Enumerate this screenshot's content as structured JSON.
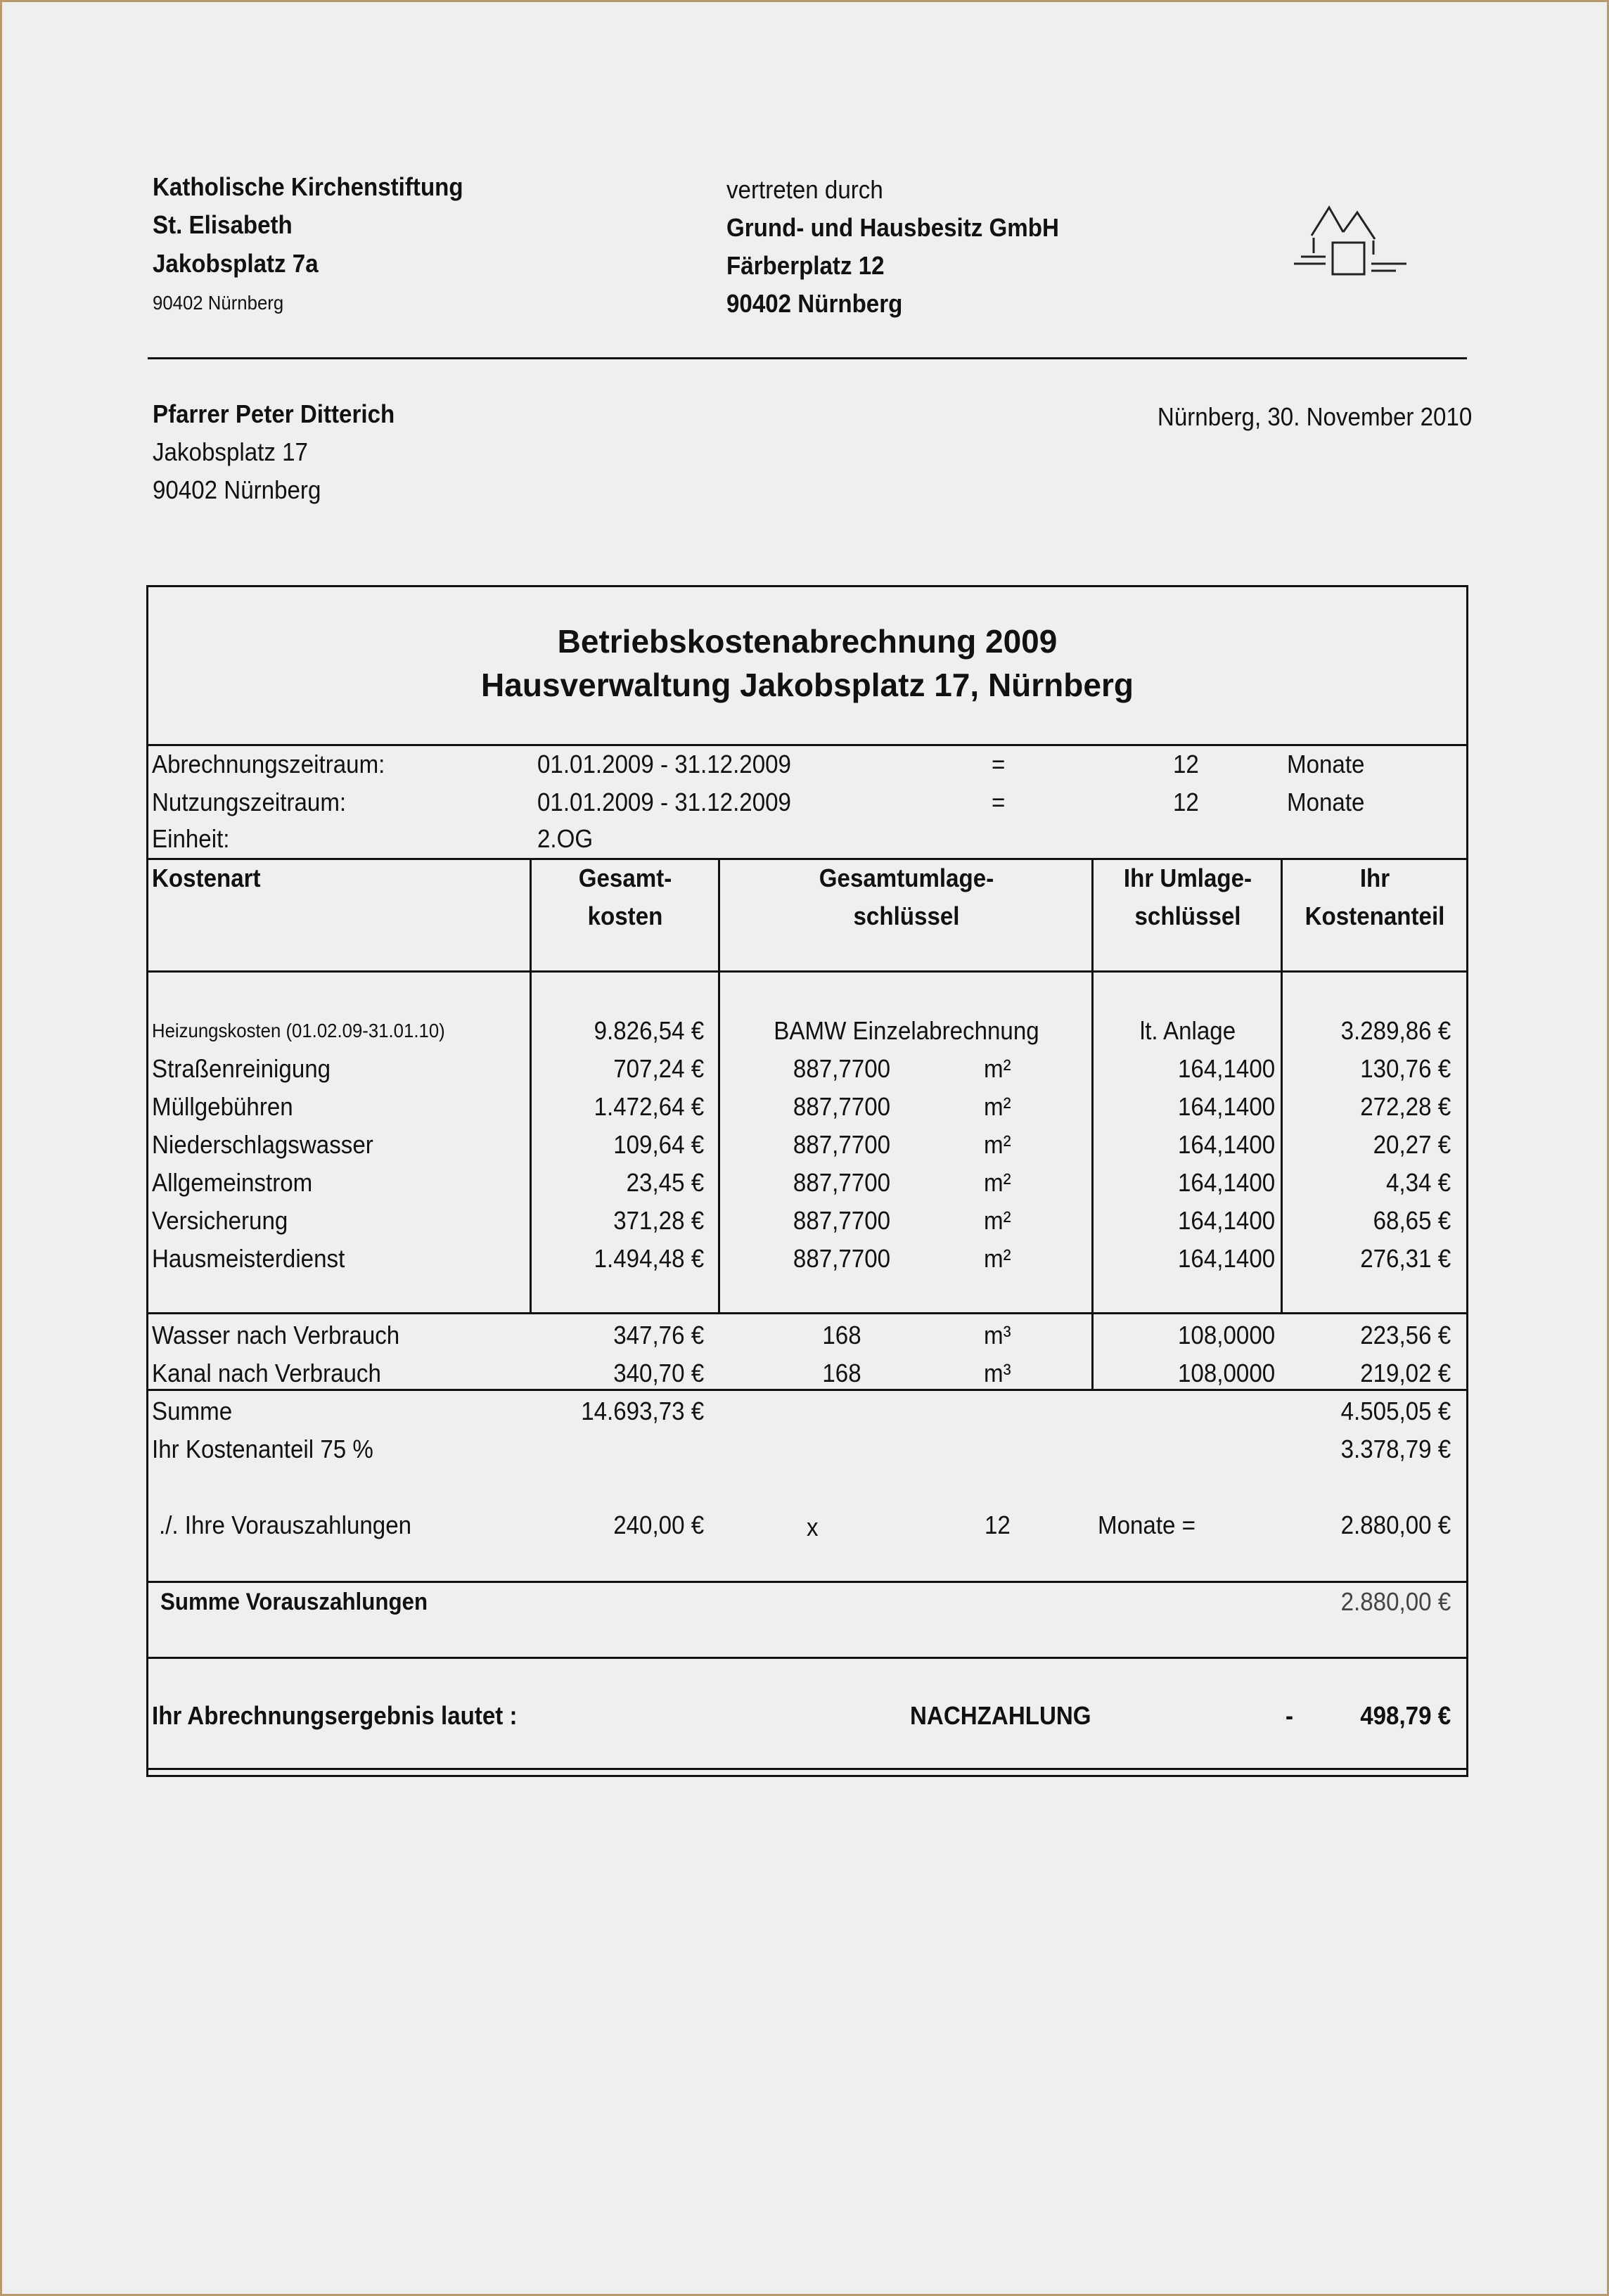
{
  "sender": {
    "name": "Katholische Kirchenstiftung",
    "line2": "St. Elisabeth",
    "street": "Jakobsplatz 7a",
    "city": "90402 Nürnberg"
  },
  "agent": {
    "intro": "vertreten durch",
    "name": "Grund- und Hausbesitz GmbH",
    "street": "Färberplatz 12",
    "city": "90402 Nürnberg",
    "logo_icon": "house-logo-icon"
  },
  "recipient": {
    "name": "Pfarrer Peter Ditterich",
    "street": "Jakobsplatz 17",
    "city": "90402 Nürnberg"
  },
  "date": "Nürnberg, 30. November 2010",
  "statement": {
    "title": "Betriebskostenabrechnung 2009",
    "subtitle": "Hausverwaltung Jakobsplatz 17, Nürnberg",
    "meta": [
      {
        "label": "Abrechnungszeitraum:",
        "value": "01.01.2009 - 31.12.2009",
        "eq": "=",
        "months": "12",
        "unit": "Monate"
      },
      {
        "label": "Nutzungszeitraum:",
        "value": "01.01.2009 - 31.12.2009",
        "eq": "=",
        "months": "12",
        "unit": "Monate"
      },
      {
        "label": "Einheit:",
        "value": "2.OG"
      }
    ],
    "headers": {
      "kostenart": "Kostenart",
      "gesamt1": "Gesamt-",
      "gesamt2": "kosten",
      "schluessel1": "Gesamtumlage-",
      "schluessel2": "schlüssel",
      "ihr1": "Ihr Umlage-",
      "ihr2": "schlüssel",
      "anteil1": "Ihr",
      "anteil2": "Kostenanteil"
    },
    "rows": [
      {
        "name": "Heizungskosten (01.02.09-31.01.10)",
        "total": "9.826,54 €",
        "key": "BAMW Einzelabrechnung",
        "unit": "",
        "share_key": "lt. Anlage",
        "share": "3.289,86 €"
      },
      {
        "name": "Straßenreinigung",
        "total": "707,24 €",
        "key": "887,7700",
        "unit": "m²",
        "share_key": "164,1400",
        "share": "130,76 €"
      },
      {
        "name": "Müllgebühren",
        "total": "1.472,64 €",
        "key": "887,7700",
        "unit": "m²",
        "share_key": "164,1400",
        "share": "272,28 €"
      },
      {
        "name": "Niederschlagswasser",
        "total": "109,64 €",
        "key": "887,7700",
        "unit": "m²",
        "share_key": "164,1400",
        "share": "20,27 €"
      },
      {
        "name": "Allgemeinstrom",
        "total": "23,45 €",
        "key": "887,7700",
        "unit": "m²",
        "share_key": "164,1400",
        "share": "4,34 €"
      },
      {
        "name": "Versicherung",
        "total": "371,28 €",
        "key": "887,7700",
        "unit": "m²",
        "share_key": "164,1400",
        "share": "68,65 €"
      },
      {
        "name": "Hausmeisterdienst",
        "total": "1.494,48 €",
        "key": "887,7700",
        "unit": "m²",
        "share_key": "164,1400",
        "share": "276,31 €"
      }
    ],
    "usage_rows": [
      {
        "name": "Wasser nach Verbrauch",
        "total": "347,76 €",
        "key": "168",
        "unit": "m³",
        "share_key": "108,0000",
        "share": "223,56 €"
      },
      {
        "name": "Kanal nach Verbrauch",
        "total": "340,70 €",
        "key": "168",
        "unit": "m³",
        "share_key": "108,0000",
        "share": "219,02 €"
      }
    ],
    "sum": {
      "label": "Summe",
      "total": "14.693,73 €",
      "share": "4.505,05 €"
    },
    "cost_share": {
      "label": "Ihr Kostenanteil 75 %",
      "value": "3.378,79 €"
    },
    "prepayments": {
      "label": "./. Ihre Vorauszahlungen",
      "amount": "240,00 €",
      "x": "x",
      "months": "12",
      "unit": "Monate  =",
      "total": "2.880,00 €"
    },
    "sum_prepayments": {
      "label": "Summe Vorauszahlungen",
      "value": "2.880,00 €"
    },
    "result": {
      "label": "Ihr Abrechnungsergebnis lautet :",
      "type": "NACHZAHLUNG",
      "sign": "-",
      "value": "498,79 €"
    }
  }
}
